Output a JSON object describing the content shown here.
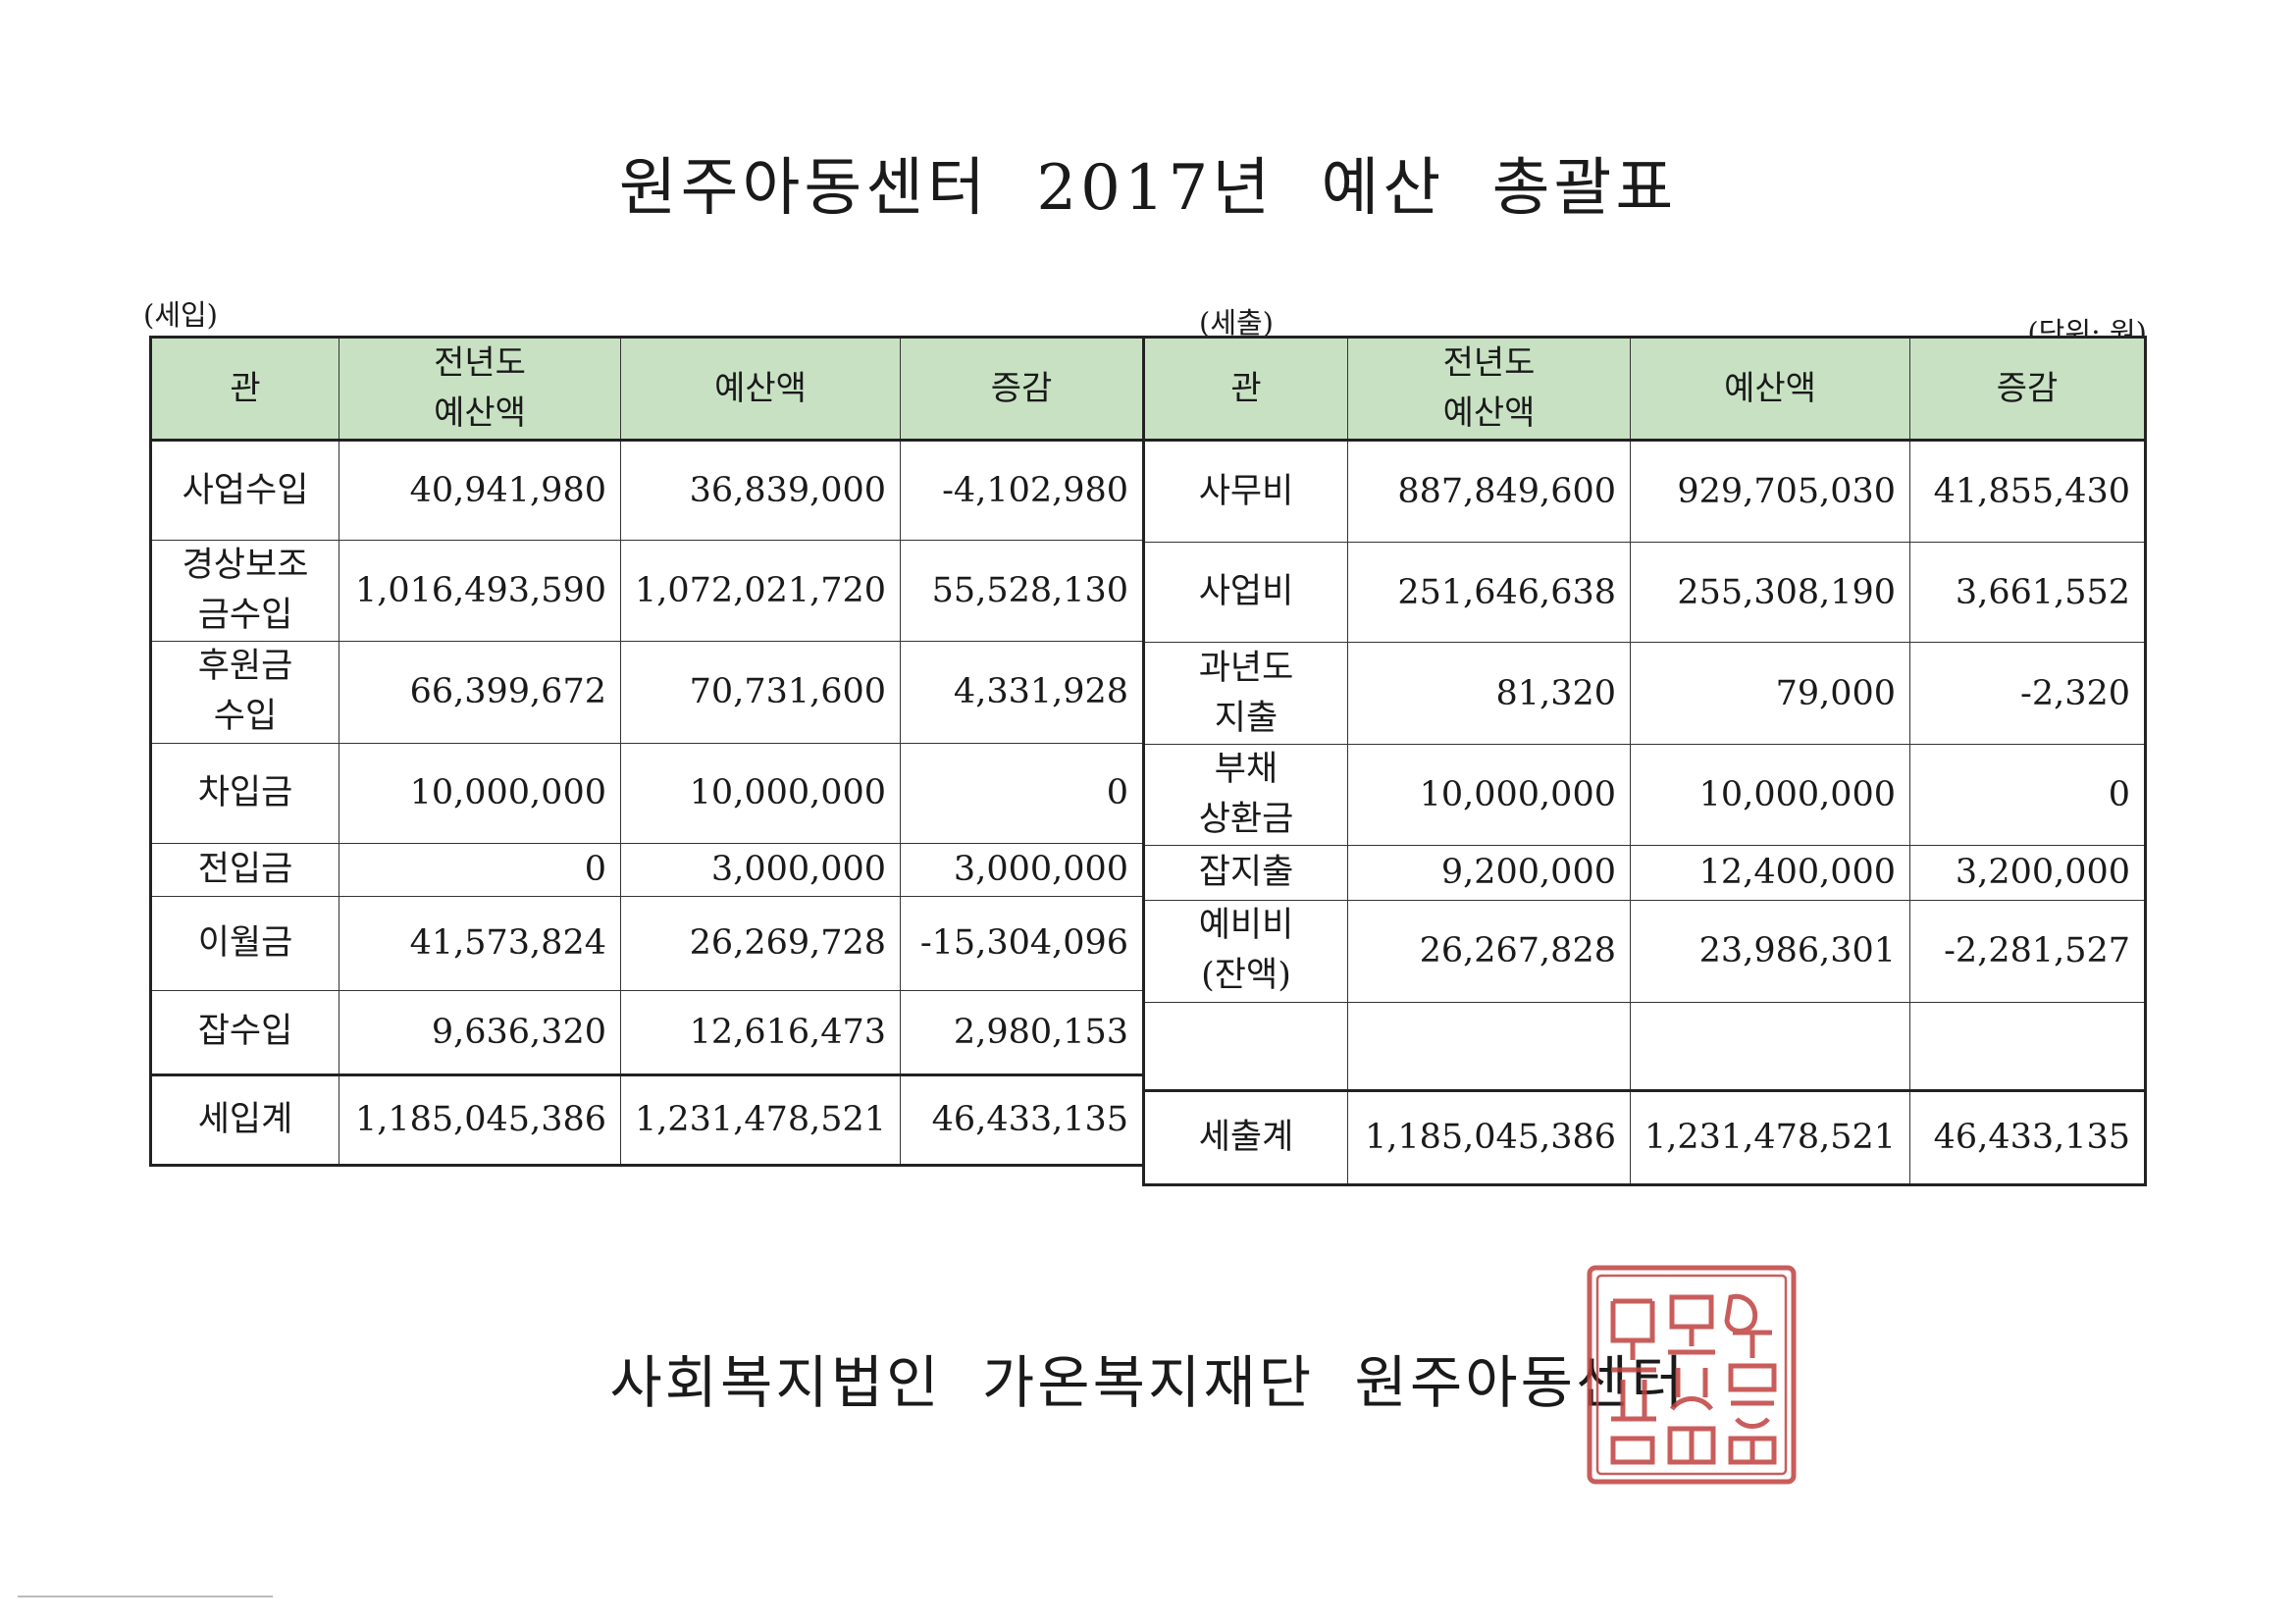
{
  "title": "원주아동센터 2017년 예산 총괄표",
  "income": {
    "label": "(세입)",
    "headers": {
      "category": "관",
      "prev_line1": "전년도",
      "prev_line2": "예산액",
      "budget": "예산액",
      "change": "증감"
    },
    "rows": [
      {
        "l1": "사업수입",
        "l2": "",
        "prev": "40,941,980",
        "budget": "36,839,000",
        "change": "-4,102,980"
      },
      {
        "l1": "경상보조",
        "l2": "금수입",
        "prev": "1,016,493,590",
        "budget": "1,072,021,720",
        "change": "55,528,130"
      },
      {
        "l1": "후원금",
        "l2": "수입",
        "prev": "66,399,672",
        "budget": "70,731,600",
        "change": "4,331,928"
      },
      {
        "l1": "차입금",
        "l2": "",
        "prev": "10,000,000",
        "budget": "10,000,000",
        "change": "0"
      },
      {
        "l1": "전입금",
        "l2": "",
        "prev": "0",
        "budget": "3,000,000",
        "change": "3,000,000"
      },
      {
        "l1": "이월금",
        "l2": "",
        "prev": "41,573,824",
        "budget": "26,269,728",
        "change": "-15,304,096"
      },
      {
        "l1": "잡수입",
        "l2": "",
        "prev": "9,636,320",
        "budget": "12,616,473",
        "change": "2,980,153"
      }
    ],
    "total": {
      "label": "세입계",
      "prev": "1,185,045,386",
      "budget": "1,231,478,521",
      "change": "46,433,135"
    }
  },
  "expense": {
    "label": "(세출)",
    "unit": "(단위: 원)",
    "headers": {
      "category": "관",
      "prev_line1": "전년도",
      "prev_line2": "예산액",
      "budget": "예산액",
      "change": "증감"
    },
    "rows": [
      {
        "l1": "사무비",
        "l2": "",
        "prev": "887,849,600",
        "budget": "929,705,030",
        "change": "41,855,430"
      },
      {
        "l1": "사업비",
        "l2": "",
        "prev": "251,646,638",
        "budget": "255,308,190",
        "change": "3,661,552"
      },
      {
        "l1": "과년도",
        "l2": "지출",
        "prev": "81,320",
        "budget": "79,000",
        "change": "-2,320"
      },
      {
        "l1": "부채",
        "l2": "상환금",
        "prev": "10,000,000",
        "budget": "10,000,000",
        "change": "0"
      },
      {
        "l1": "잡지출",
        "l2": "",
        "prev": "9,200,000",
        "budget": "12,400,000",
        "change": "3,200,000"
      },
      {
        "l1": "예비비",
        "l2": "(잔액)",
        "prev": "26,267,828",
        "budget": "23,986,301",
        "change": "-2,281,527"
      },
      {
        "l1": "",
        "l2": "",
        "prev": "",
        "budget": "",
        "change": ""
      }
    ],
    "total": {
      "label": "세출계",
      "prev": "1,185,045,386",
      "budget": "1,231,478,521",
      "change": "46,433,135"
    }
  },
  "footer": "사회복지법인 가온복지재단 원주아동센터",
  "seal": {
    "color": "#c0413f",
    "text": "원주아동센터 재단법인"
  }
}
